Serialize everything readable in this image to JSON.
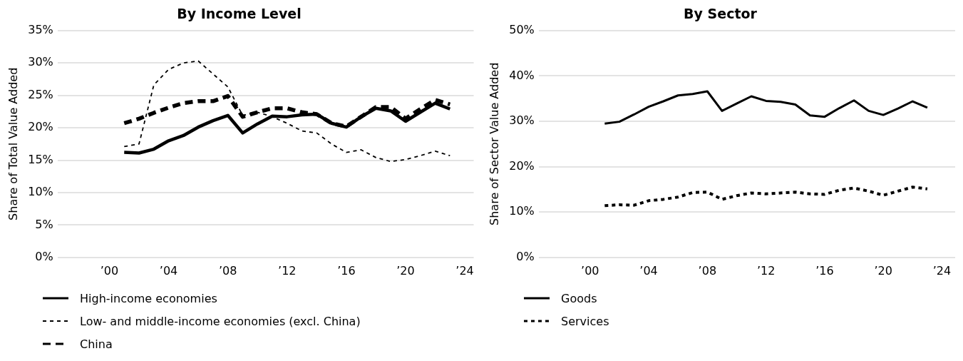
{
  "chart_data": [
    {
      "type": "line",
      "title": "By Income Level",
      "ylabel": "Share of Total Value Added",
      "x": [
        2001,
        2002,
        2003,
        2004,
        2005,
        2006,
        2007,
        2008,
        2009,
        2010,
        2011,
        2012,
        2013,
        2014,
        2015,
        2016,
        2017,
        2018,
        2019,
        2020,
        2021,
        2022,
        2023
      ],
      "series": [
        {
          "name": "High-income economies",
          "color": "#000000",
          "line_style": "solid",
          "values": [
            16.2,
            16.1,
            16.7,
            18.0,
            18.8,
            20.1,
            21.1,
            21.9,
            19.2,
            20.6,
            21.8,
            21.7,
            22.0,
            22.1,
            20.7,
            20.1,
            21.7,
            23.0,
            22.6,
            21.0,
            22.4,
            23.8,
            22.9
          ]
        },
        {
          "name": "Low- and middle-income economies (excl. China)",
          "color": "#000000",
          "line_style": "dotted",
          "values": [
            17.1,
            17.5,
            26.6,
            29.0,
            30.0,
            30.3,
            28.3,
            26.3,
            21.9,
            22.4,
            21.7,
            20.7,
            19.5,
            19.2,
            17.5,
            16.2,
            16.6,
            15.4,
            14.8,
            15.1,
            15.7,
            16.4,
            15.7
          ]
        },
        {
          "name": "China",
          "color": "#000000",
          "line_style": "dashed",
          "values": [
            20.7,
            21.4,
            22.3,
            23.1,
            23.8,
            24.1,
            24.1,
            24.9,
            21.7,
            22.4,
            23.0,
            23.0,
            22.4,
            22.1,
            20.7,
            20.2,
            21.7,
            23.2,
            23.2,
            21.4,
            22.9,
            24.3,
            23.6
          ]
        }
      ],
      "xlim": [
        1996.5,
        2024.6
      ],
      "xticks": [
        {
          "value": 2000,
          "label": "’00"
        },
        {
          "value": 2004,
          "label": "’04"
        },
        {
          "value": 2008,
          "label": "’08"
        },
        {
          "value": 2012,
          "label": "’12"
        },
        {
          "value": 2016,
          "label": "’16"
        },
        {
          "value": 2020,
          "label": "’20"
        },
        {
          "value": 2024,
          "label": "’24"
        }
      ],
      "ylim": [
        0,
        35
      ],
      "yticks": [
        {
          "value": 0,
          "label": "0%"
        },
        {
          "value": 5,
          "label": "5%"
        },
        {
          "value": 10,
          "label": "10%"
        },
        {
          "value": 15,
          "label": "15%"
        },
        {
          "value": 20,
          "label": "20%"
        },
        {
          "value": 25,
          "label": "25%"
        },
        {
          "value": 30,
          "label": "30%"
        },
        {
          "value": 35,
          "label": "35%"
        }
      ],
      "grid": "y",
      "legend": "bottom",
      "marker": "none"
    },
    {
      "type": "line",
      "title": "By Sector",
      "ylabel": "Share of Sector Value Added",
      "x": [
        2001,
        2002,
        2003,
        2004,
        2005,
        2006,
        2007,
        2008,
        2009,
        2010,
        2011,
        2012,
        2013,
        2014,
        2015,
        2016,
        2017,
        2018,
        2019,
        2020,
        2021,
        2022,
        2023
      ],
      "series": [
        {
          "name": "Goods",
          "color": "#000000",
          "line_style": "solid",
          "values": [
            29.5,
            29.9,
            31.5,
            33.2,
            34.4,
            35.7,
            36.0,
            36.6,
            32.3,
            33.9,
            35.5,
            34.5,
            34.3,
            33.7,
            31.3,
            31.0,
            32.9,
            34.6,
            32.3,
            31.4,
            32.8,
            34.4,
            33.0
          ]
        },
        {
          "name": "Services",
          "color": "#000000",
          "line_style": "dotted",
          "values": [
            11.4,
            11.6,
            11.5,
            12.5,
            12.8,
            13.3,
            14.3,
            14.4,
            12.8,
            13.6,
            14.2,
            14.0,
            14.2,
            14.4,
            14.0,
            13.9,
            14.8,
            15.3,
            14.6,
            13.7,
            14.6,
            15.5,
            15.1
          ]
        }
      ],
      "xlim": [
        1996.5,
        2024.9
      ],
      "xticks": [
        {
          "value": 2000,
          "label": "’00"
        },
        {
          "value": 2004,
          "label": "’04"
        },
        {
          "value": 2008,
          "label": "’08"
        },
        {
          "value": 2012,
          "label": "’12"
        },
        {
          "value": 2016,
          "label": "’16"
        },
        {
          "value": 2020,
          "label": "’20"
        },
        {
          "value": 2024,
          "label": "’24"
        }
      ],
      "ylim": [
        0,
        50
      ],
      "yticks": [
        {
          "value": 0,
          "label": "0%"
        },
        {
          "value": 10,
          "label": "10%"
        },
        {
          "value": 20,
          "label": "20%"
        },
        {
          "value": 30,
          "label": "30%"
        },
        {
          "value": 40,
          "label": "40%"
        },
        {
          "value": 50,
          "label": "50%"
        }
      ],
      "grid": "y",
      "legend": "bottom",
      "marker": "none"
    }
  ]
}
